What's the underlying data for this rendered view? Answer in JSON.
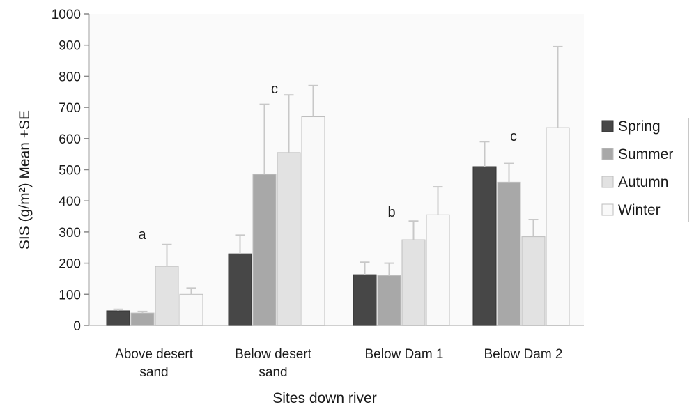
{
  "chart_data": {
    "type": "bar",
    "xlabel": "Sites down river",
    "ylabel": "SIS (g/m²) Mean +SE",
    "ylim": [
      0,
      1000
    ],
    "yticks": [
      0,
      100,
      200,
      300,
      400,
      500,
      600,
      700,
      800,
      900,
      1000
    ],
    "categories": [
      [
        "Above desert",
        "sand"
      ],
      [
        "Below desert",
        "sand"
      ],
      [
        "Below Dam 1"
      ],
      [
        "Below Dam 2"
      ]
    ],
    "series": [
      {
        "name": "Spring",
        "values": [
          47,
          230,
          163,
          510
        ],
        "errors": [
          5,
          60,
          40,
          80
        ],
        "color": "#474747"
      },
      {
        "name": "Summer",
        "values": [
          40,
          485,
          160,
          460
        ],
        "errors": [
          5,
          225,
          40,
          60
        ],
        "color": "#a8a8a8"
      },
      {
        "name": "Autumn",
        "values": [
          190,
          555,
          275,
          285
        ],
        "errors": [
          70,
          185,
          60,
          55
        ],
        "color": "#e2e2e2"
      },
      {
        "name": "Winter",
        "values": [
          100,
          670,
          355,
          635
        ],
        "errors": [
          20,
          100,
          90,
          260
        ],
        "color": "#f9f9f9"
      }
    ],
    "annotations": [
      {
        "category": 0,
        "text": "a"
      },
      {
        "category": 1,
        "text": "c"
      },
      {
        "category": 2,
        "text": "b"
      },
      {
        "category": 3,
        "text": "c"
      }
    ],
    "legend": "right",
    "grid": false
  }
}
